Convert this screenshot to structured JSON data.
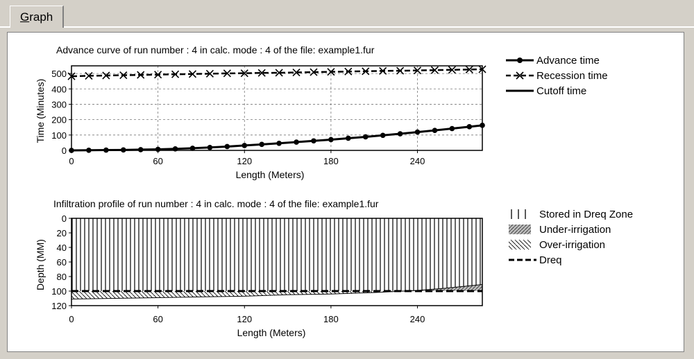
{
  "tab": {
    "label": "Graph"
  },
  "chart_data": [
    {
      "type": "line",
      "title": "Advance curve of run number : 4 in calc. mode : 4 of the file: example1.fur",
      "xlabel": "Length (Meters)",
      "ylabel": "Time  (Minutes)",
      "xlim": [
        0,
        285
      ],
      "ylim": [
        0,
        550
      ],
      "xticks": [
        0,
        60,
        120,
        180,
        240
      ],
      "yticks": [
        0,
        100,
        200,
        300,
        400,
        500
      ],
      "grid": true,
      "legend_position": "right",
      "series": [
        {
          "name": "Advance time",
          "style": "solid-dot",
          "x": [
            0,
            12,
            24,
            36,
            48,
            60,
            72,
            84,
            96,
            108,
            120,
            132,
            144,
            156,
            168,
            180,
            192,
            204,
            216,
            228,
            240,
            252,
            264,
            276,
            285
          ],
          "y": [
            0,
            1,
            2,
            3,
            5,
            7,
            10,
            14,
            19,
            25,
            32,
            39,
            46,
            54,
            62,
            70,
            79,
            88,
            98,
            108,
            119,
            130,
            142,
            154,
            163
          ]
        },
        {
          "name": "Recession time",
          "style": "dashed-x",
          "x": [
            0,
            12,
            24,
            36,
            48,
            60,
            72,
            84,
            96,
            108,
            120,
            132,
            144,
            156,
            168,
            180,
            192,
            204,
            216,
            228,
            240,
            252,
            264,
            276,
            285
          ],
          "y": [
            482,
            485,
            487,
            489,
            491,
            493,
            495,
            497,
            499,
            501,
            502,
            504,
            505,
            507,
            509,
            511,
            513,
            515,
            517,
            518,
            520,
            522,
            524,
            526,
            528
          ]
        },
        {
          "name": "Cutoff time",
          "style": "solid",
          "x": [],
          "y": []
        }
      ]
    },
    {
      "type": "area",
      "title": "Infiltration profile of run number : 4 in calc. mode : 4 of the file: example1.fur",
      "xlabel": "Length (Meters)",
      "ylabel": "Depth  (MM)",
      "xlim": [
        0,
        285
      ],
      "ylim": [
        120,
        0
      ],
      "xticks": [
        0,
        60,
        120,
        180,
        240
      ],
      "yticks": [
        0,
        20,
        40,
        60,
        80,
        100,
        120
      ],
      "legend_position": "right",
      "dreq": 100,
      "series": [
        {
          "name": "Stored in Dreq Zone",
          "style": "vertical-hatch"
        },
        {
          "name": "Under-irrigation",
          "style": "diagonal-hatch-gray"
        },
        {
          "name": "Over-irrigation",
          "style": "diagonal-hatch"
        },
        {
          "name": "Dreq",
          "style": "dashed"
        }
      ],
      "infiltrated_depth": {
        "x": [
          0,
          30,
          60,
          90,
          120,
          150,
          180,
          210,
          240,
          260,
          275,
          285
        ],
        "y": [
          111,
          110,
          109,
          108,
          107,
          105,
          104,
          102,
          99,
          96,
          93,
          91
        ]
      }
    }
  ]
}
